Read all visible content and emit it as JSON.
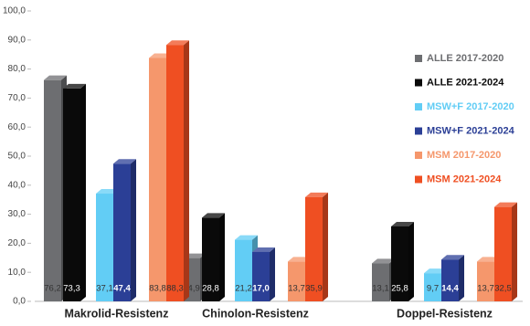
{
  "chart_data": {
    "type": "bar3d",
    "categories": [
      "Makrolid-Resistenz",
      "Chinolon-Resistenz",
      "Doppel-Resistenz"
    ],
    "series": [
      {
        "name": "ALLE 2017-2020",
        "color": "#6d6e71",
        "values": [
          76.2,
          14.9,
          13.1
        ],
        "value_labels": [
          "76,2",
          "14,9",
          "13,1"
        ]
      },
      {
        "name": "ALLE 2021-2024",
        "color": "#0a0a0a",
        "values": [
          73.3,
          28.8,
          25.8
        ],
        "value_labels": [
          "73,3",
          "28,8",
          "25,8"
        ]
      },
      {
        "name": "MSW+F 2017-2020",
        "color": "#62cdf5",
        "values": [
          37.1,
          21.2,
          9.7
        ],
        "value_labels": [
          "37,1",
          "21,2",
          "9,7"
        ]
      },
      {
        "name": "MSW+F 2021-2024",
        "color": "#2b3f96",
        "values": [
          47.4,
          17.0,
          14.4
        ],
        "value_labels": [
          "47,4",
          "17,0",
          "14,4"
        ]
      },
      {
        "name": "MSM 2017-2020",
        "color": "#f5976c",
        "values": [
          83.8,
          13.7,
          13.7
        ],
        "value_labels": [
          "83,8",
          "13,7",
          "13,7"
        ]
      },
      {
        "name": "MSM 2021-2024",
        "color": "#ef4f22",
        "values": [
          88.3,
          35.9,
          32.5
        ],
        "value_labels": [
          "88,3",
          "35,9",
          "32,5"
        ]
      }
    ],
    "ylim": [
      0,
      100
    ],
    "yticks": [
      {
        "value": 0,
        "label": "0,0"
      },
      {
        "value": 10,
        "label": "10,0"
      },
      {
        "value": 20,
        "label": "20,0"
      },
      {
        "value": 30,
        "label": "30,0"
      },
      {
        "value": 40,
        "label": "40,0"
      },
      {
        "value": 50,
        "label": "50,0"
      },
      {
        "value": 60,
        "label": "60,0"
      },
      {
        "value": 70,
        "label": "70,0"
      },
      {
        "value": 80,
        "label": "80,0"
      },
      {
        "value": 90,
        "label": "90,0"
      },
      {
        "value": 100,
        "label": "100,0"
      }
    ],
    "legend": "right"
  }
}
